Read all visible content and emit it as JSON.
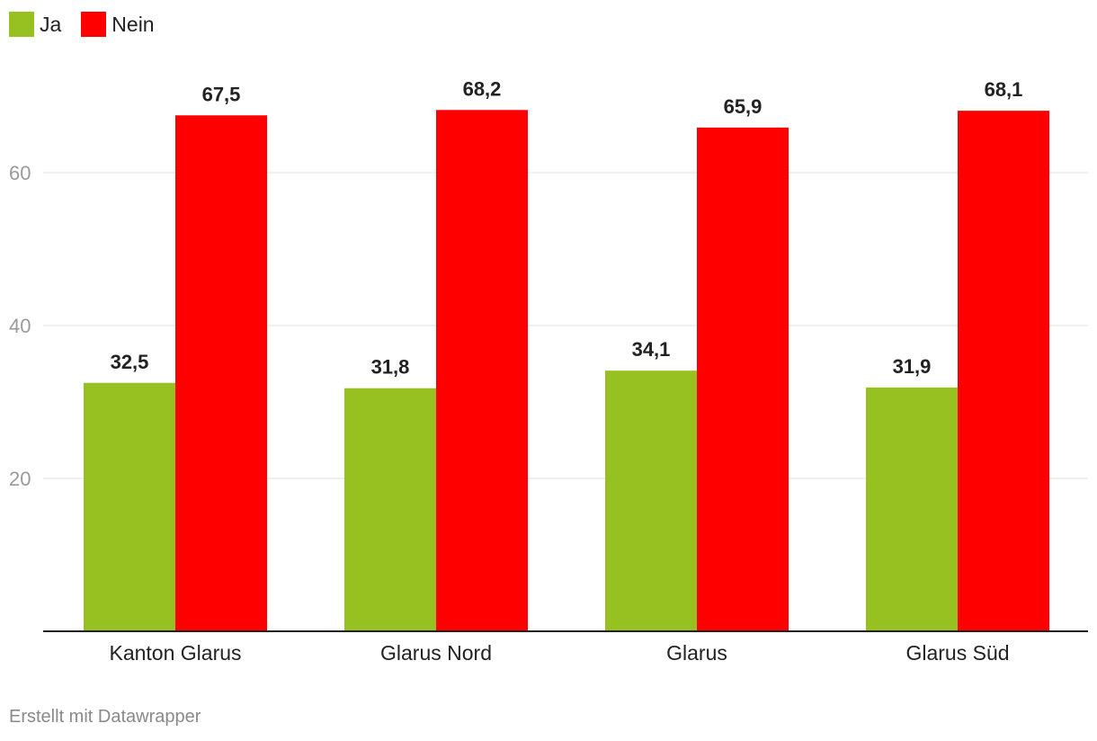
{
  "chart_data": {
    "type": "bar",
    "categories": [
      "Kanton Glarus",
      "Glarus Nord",
      "Glarus",
      "Glarus Süd"
    ],
    "series": [
      {
        "name": "Ja",
        "values": [
          32.5,
          31.8,
          34.1,
          31.9
        ],
        "labels": [
          "32,5",
          "31,8",
          "34,1",
          "31,9"
        ],
        "color": "#97c021"
      },
      {
        "name": "Nein",
        "values": [
          67.5,
          68.2,
          65.9,
          68.1
        ],
        "labels": [
          "67,5",
          "68,2",
          "65,9",
          "68,1"
        ],
        "color": "#ff0000"
      }
    ],
    "yticks": [
      20,
      40,
      60
    ],
    "ylim": [
      0,
      80
    ],
    "grid": true,
    "legend_position": "top-left"
  },
  "footer": {
    "credit": "Erstellt mit Datawrapper"
  }
}
